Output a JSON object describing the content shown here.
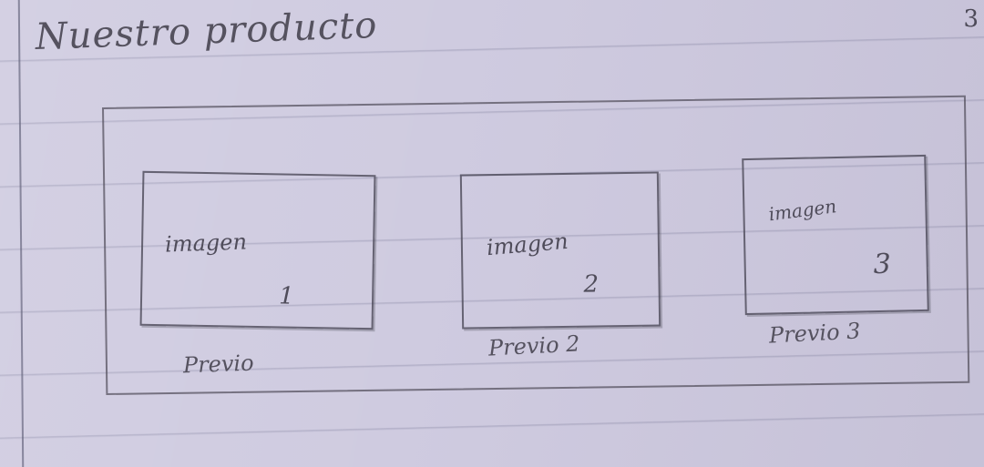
{
  "sketch": {
    "heading": "Nuestro producto",
    "corner_note": "3",
    "products": [
      {
        "image_label": "imagen",
        "image_number": "1",
        "caption": "Previo"
      },
      {
        "image_label": "imagen",
        "image_number": "2",
        "caption": "Previo 2"
      },
      {
        "image_label": "imagen",
        "image_number": "3",
        "caption": "Previo 3"
      }
    ]
  },
  "colors": {
    "paper": "#cfcbe0",
    "pencil": "#55525f"
  }
}
